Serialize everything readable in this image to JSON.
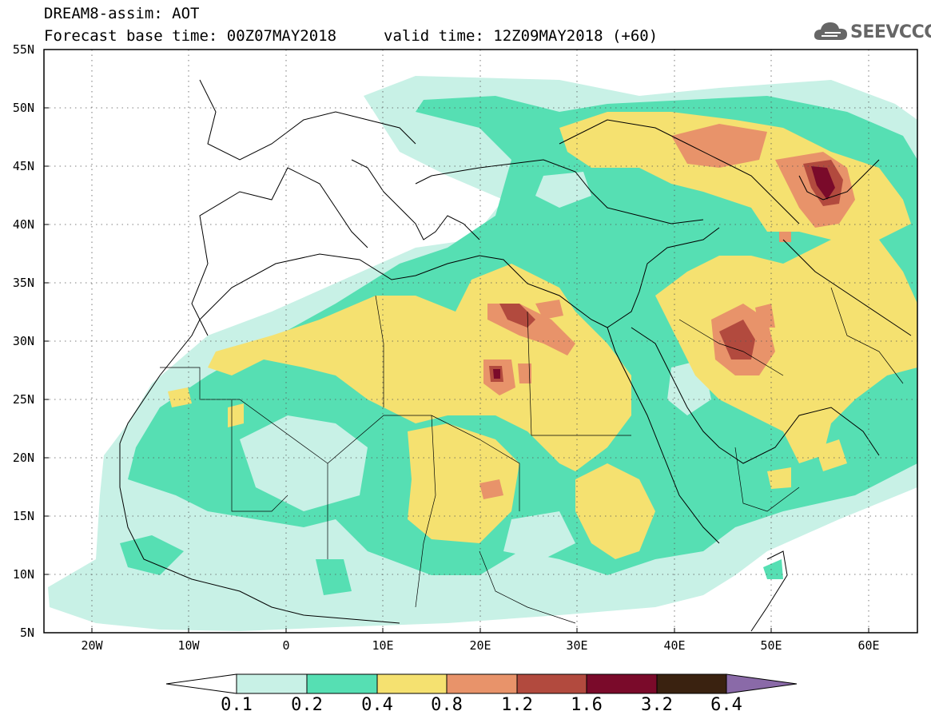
{
  "header": {
    "title_line1": "DREAM8-assim: AOT",
    "title_line2": "Forecast base time: 00Z07MAY2018",
    "valid_time": "valid time: 12Z09MAY2018 (+60)",
    "logo_text": "SEEVCCC",
    "logo_icon": "cloud-icon"
  },
  "axes": {
    "lat_labels": [
      "55N",
      "50N",
      "45N",
      "40N",
      "35N",
      "30N",
      "25N",
      "20N",
      "15N",
      "10N",
      "5N"
    ],
    "lon_labels": [
      "20W",
      "10W",
      "0",
      "10E",
      "20E",
      "30E",
      "40E",
      "50E",
      "60E"
    ],
    "lat_range": [
      5,
      55
    ],
    "lon_range": [
      -25,
      65
    ],
    "grid": "dotted"
  },
  "colorbar": {
    "labels": [
      "0.1",
      "0.2",
      "0.4",
      "0.8",
      "1.2",
      "1.6",
      "3.2",
      "6.4"
    ],
    "colors": [
      "#ffffff",
      "#c8f1e6",
      "#56dfb3",
      "#f5e170",
      "#e8936a",
      "#b24a3e",
      "#7a0a2a",
      "#3a2210",
      "#8a6aa8"
    ]
  },
  "levels_colors": {
    "lt_0_1": "#ffffff",
    "c0_1_0_2": "#c8f1e6",
    "c0_2_0_4": "#56dfb3",
    "c0_4_0_8": "#f5e170",
    "c0_8_1_2": "#e8936a",
    "c1_2_1_6": "#b24a3e",
    "c1_6_3_2": "#7a0a2a"
  }
}
